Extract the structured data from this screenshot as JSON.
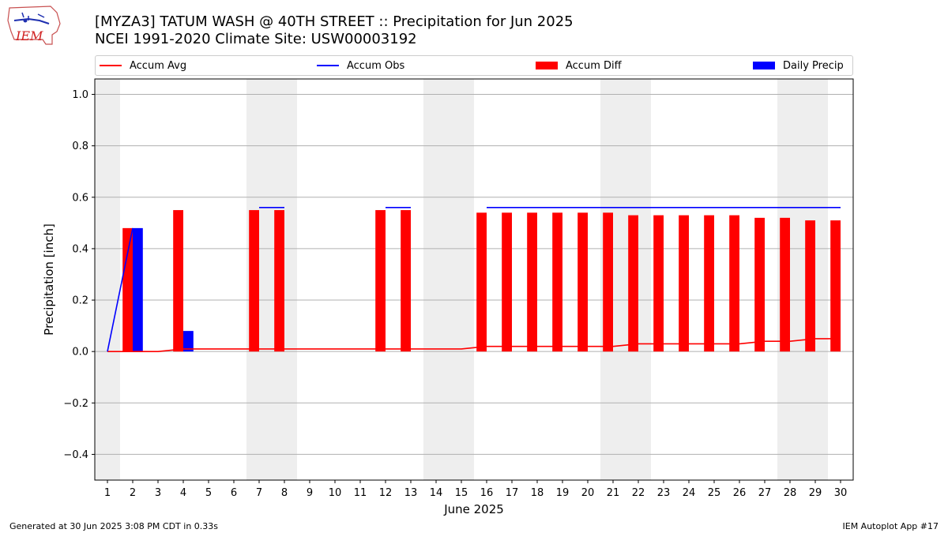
{
  "logo": {
    "text": "IEM"
  },
  "header": {
    "title": "[MYZA3] TATUM WASH @ 40TH STREET :: Precipitation for Jun 2025",
    "subtitle": "NCEI 1991-2020 Climate Site: USW00003192"
  },
  "footer": {
    "left": "Generated at 30 Jun 2025 3:08 PM CDT in 0.33s",
    "right": "IEM Autoplot App #17"
  },
  "colors": {
    "avg": "#ff0000",
    "obs": "#0000ff",
    "diff": "#ff0000",
    "daily": "#0000ff",
    "weekend_shade": "#eeeeee",
    "grid": "#b0b0b0"
  },
  "chart_data": {
    "type": "bar",
    "xlabel": "June 2025",
    "ylabel": "Precipitation [inch]",
    "xlim": [
      0.5,
      30.5
    ],
    "ylim": [
      -0.5,
      1.06
    ],
    "grid": "horizontal",
    "legend_position": "top",
    "legend": [
      "Accum Avg",
      "Accum Obs",
      "Accum Diff",
      "Daily Precip"
    ],
    "x": [
      1,
      2,
      3,
      4,
      5,
      6,
      7,
      8,
      9,
      10,
      11,
      12,
      13,
      14,
      15,
      16,
      17,
      18,
      19,
      20,
      21,
      22,
      23,
      24,
      25,
      26,
      27,
      28,
      29,
      30
    ],
    "x_tick_labels": [
      "1",
      "2",
      "3",
      "4",
      "5",
      "6",
      "7",
      "8",
      "9",
      "10",
      "11",
      "12",
      "13",
      "14",
      "15",
      "16",
      "17",
      "18",
      "19",
      "20",
      "21",
      "22",
      "23",
      "24",
      "25",
      "26",
      "27",
      "28",
      "29",
      "30"
    ],
    "y_ticks": [
      -0.4,
      -0.2,
      0.0,
      0.2,
      0.4,
      0.6,
      0.8,
      1.0
    ],
    "y_tick_labels": [
      "−0.4",
      "−0.2",
      "0.0",
      "0.2",
      "0.4",
      "0.6",
      "0.8",
      "1.0"
    ],
    "shaded_days": [
      [
        0.5,
        1.5
      ],
      [
        6.5,
        8.5
      ],
      [
        13.5,
        15.5
      ],
      [
        20.5,
        22.5
      ],
      [
        27.5,
        29.5
      ]
    ],
    "series": [
      {
        "name": "Accum Avg",
        "type": "line",
        "x": [
          1,
          2,
          3,
          4,
          5,
          6,
          7,
          8,
          9,
          10,
          11,
          12,
          13,
          14,
          15,
          16,
          17,
          18,
          19,
          20,
          21,
          22,
          23,
          24,
          25,
          26,
          27,
          28,
          29,
          30
        ],
        "values": [
          0.0,
          0.0,
          0.0,
          0.01,
          0.01,
          0.01,
          0.01,
          0.01,
          0.01,
          0.01,
          0.01,
          0.01,
          0.01,
          0.01,
          0.01,
          0.02,
          0.02,
          0.02,
          0.02,
          0.02,
          0.02,
          0.03,
          0.03,
          0.03,
          0.03,
          0.03,
          0.04,
          0.04,
          0.05,
          0.05
        ]
      },
      {
        "name": "Accum Obs",
        "type": "line",
        "segments": [
          {
            "x": [
              1,
              2
            ],
            "values": [
              0.0,
              0.48
            ]
          },
          {
            "x": [
              7,
              8
            ],
            "values": [
              0.56,
              0.56
            ]
          },
          {
            "x": [
              12,
              13
            ],
            "values": [
              0.56,
              0.56
            ]
          },
          {
            "x": [
              16,
              17,
              18,
              19,
              20,
              21,
              22,
              23,
              24,
              25,
              26,
              27,
              28,
              29,
              30
            ],
            "values": [
              0.56,
              0.56,
              0.56,
              0.56,
              0.56,
              0.56,
              0.56,
              0.56,
              0.56,
              0.56,
              0.56,
              0.56,
              0.56,
              0.56,
              0.56
            ]
          }
        ]
      },
      {
        "name": "Accum Diff",
        "type": "bar",
        "x": [
          2,
          4,
          7,
          8,
          12,
          13,
          16,
          17,
          18,
          19,
          20,
          21,
          22,
          23,
          24,
          25,
          26,
          27,
          28,
          29,
          30
        ],
        "values": [
          0.48,
          0.55,
          0.55,
          0.55,
          0.55,
          0.55,
          0.54,
          0.54,
          0.54,
          0.54,
          0.54,
          0.54,
          0.53,
          0.53,
          0.53,
          0.53,
          0.53,
          0.52,
          0.52,
          0.51,
          0.51
        ]
      },
      {
        "name": "Daily Precip",
        "type": "bar",
        "x": [
          2,
          4
        ],
        "values": [
          0.48,
          0.08
        ]
      }
    ]
  }
}
